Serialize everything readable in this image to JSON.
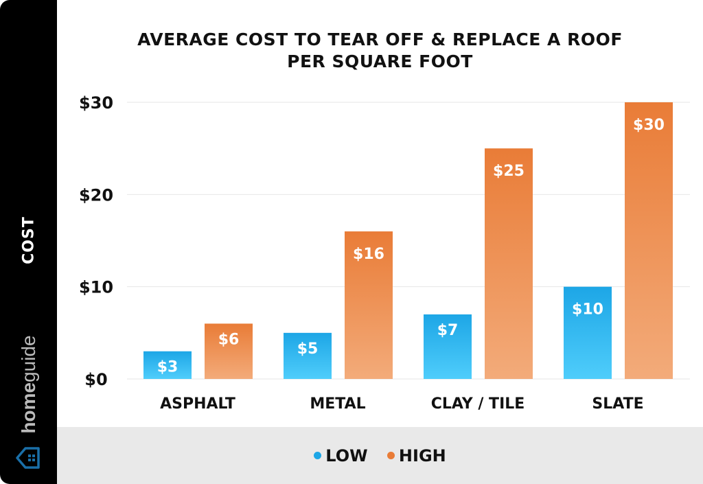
{
  "brand": {
    "name_bold": "home",
    "name_light": "guide"
  },
  "chart_data": {
    "type": "bar",
    "title": "AVERAGE COST TO TEAR OFF & REPLACE A ROOF",
    "subtitle": "PER SQUARE FOOT",
    "xlabel": "",
    "ylabel": "COST",
    "ylim": [
      0,
      30
    ],
    "yticks": [
      "$0",
      "$10",
      "$20",
      "$30"
    ],
    "ytick_values": [
      0,
      10,
      20,
      30
    ],
    "grid": true,
    "legend_position": "bottom",
    "categories": [
      "ASPHALT",
      "METAL",
      "CLAY / TILE",
      "SLATE"
    ],
    "series": [
      {
        "name": "LOW",
        "values": [
          3,
          5,
          7,
          10
        ],
        "labels": [
          "$3",
          "$5",
          "$7",
          "$10"
        ],
        "color_top": "#1da6e6",
        "color_bottom": "#4fcdfb"
      },
      {
        "name": "HIGH",
        "values": [
          6,
          16,
          25,
          30
        ],
        "labels": [
          "$6",
          "$16",
          "$25",
          "$30"
        ],
        "color_top": "#e97c37",
        "color_bottom": "#f3ab7a"
      }
    ]
  }
}
